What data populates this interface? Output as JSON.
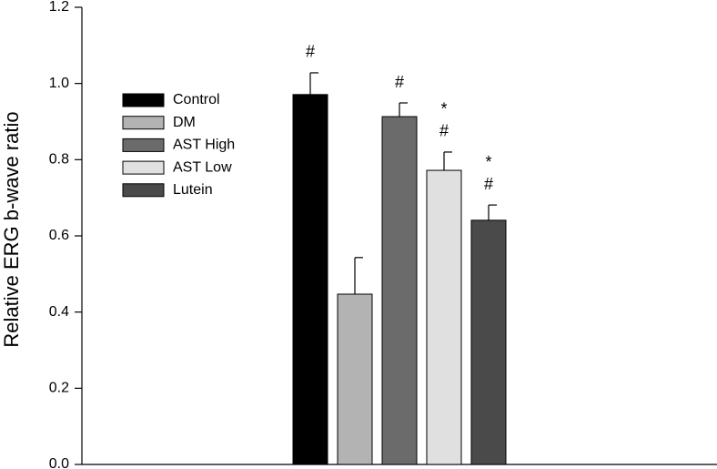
{
  "chart_data": {
    "type": "bar",
    "y_label": "Relative ERG b-wave ratio",
    "categories": [
      null
    ],
    "series": [
      {
        "name": "Control",
        "color": "#000000",
        "values": [
          0.971
        ],
        "errors": [
          0.057
        ],
        "annotations": [
          "#"
        ]
      },
      {
        "name": "DM",
        "color": "#b3b3b3",
        "values": [
          0.447
        ],
        "errors": [
          0.096
        ],
        "annotations": []
      },
      {
        "name": "AST High",
        "color": "#6b6b6b",
        "values": [
          0.913
        ],
        "errors": [
          0.036
        ],
        "annotations": [
          "#"
        ]
      },
      {
        "name": "AST Low",
        "color": "#e0e0e0",
        "values": [
          0.772
        ],
        "errors": [
          0.048
        ],
        "annotations": [
          "*",
          "#"
        ]
      },
      {
        "name": "Lutein",
        "color": "#4a4a4a",
        "values": [
          0.641
        ],
        "errors": [
          0.04
        ],
        "annotations": [
          "*",
          "#"
        ]
      }
    ],
    "ylim": [
      0,
      1.2
    ],
    "yticks": [
      {
        "value": 0,
        "label": "0.0"
      },
      0.2,
      0.4,
      0.6,
      0.8,
      {
        "value": 1,
        "label": "1.0"
      },
      1.2
    ],
    "legend": "upper left"
  }
}
